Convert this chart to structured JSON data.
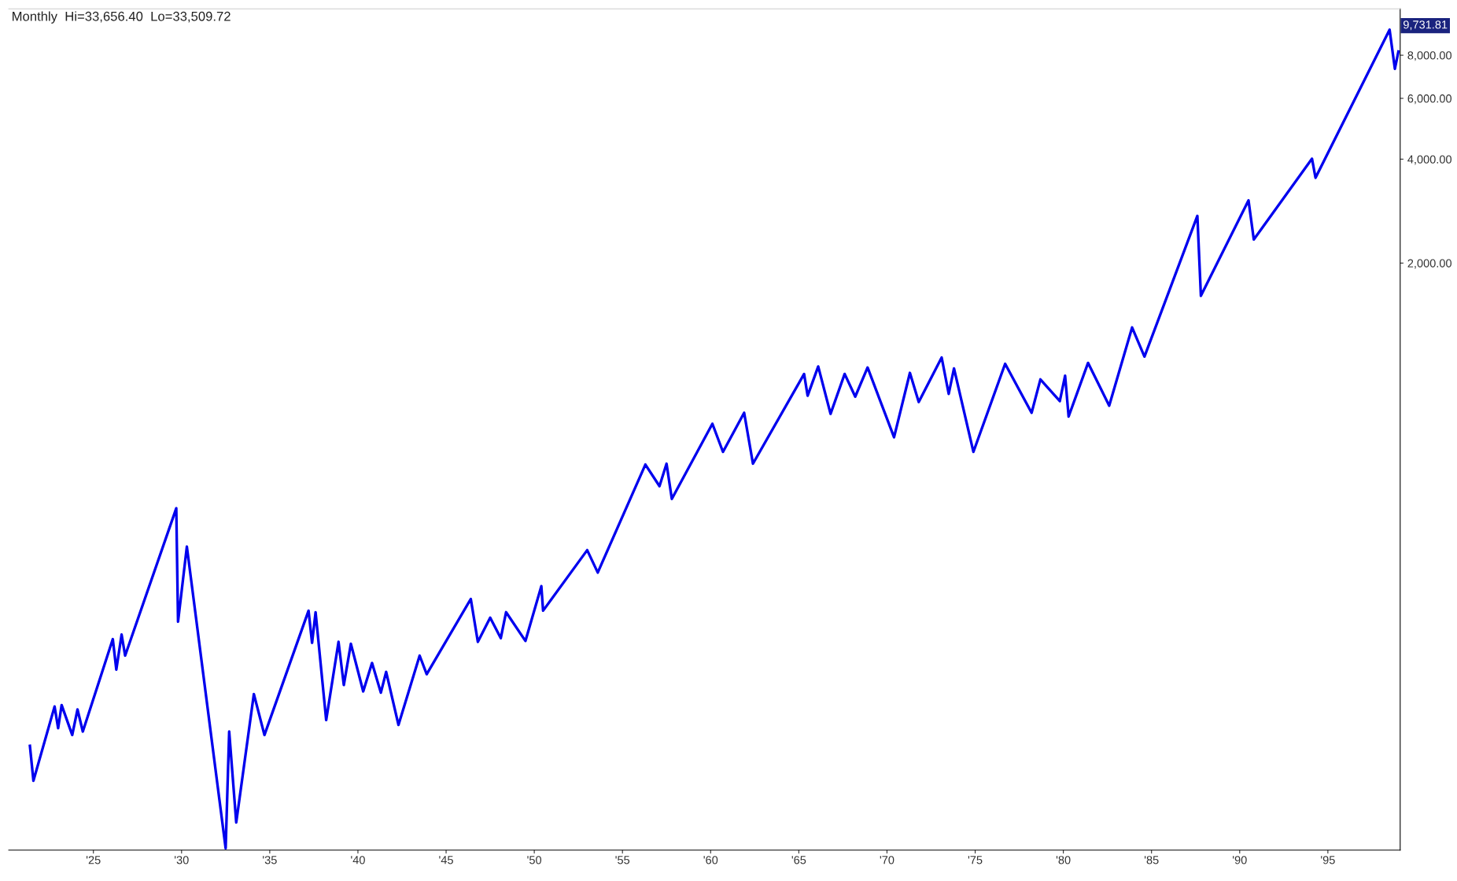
{
  "chart_data": {
    "type": "line",
    "title": "Monthly  Hi=33,656.40  Lo=33,509.72",
    "log": "y",
    "grid": false,
    "marker": "none",
    "line_style": "solid",
    "x": [
      1921.4,
      1921.6,
      1922.8,
      1923.0,
      1923.2,
      1923.8,
      1924.1,
      1924.4,
      1926.1,
      1926.3,
      1926.6,
      1926.8,
      1929.7,
      1929.8,
      1930.3,
      1932.5,
      1932.7,
      1933.1,
      1934.1,
      1934.7,
      1937.2,
      1937.4,
      1937.6,
      1938.2,
      1938.9,
      1939.2,
      1939.6,
      1940.3,
      1940.8,
      1941.3,
      1941.6,
      1942.3,
      1943.5,
      1943.9,
      1946.4,
      1946.8,
      1947.5,
      1948.1,
      1948.4,
      1949.5,
      1950.4,
      1950.5,
      1953.0,
      1953.6,
      1956.3,
      1957.1,
      1957.5,
      1957.8,
      1960.1,
      1960.7,
      1961.9,
      1962.4,
      1965.3,
      1965.5,
      1966.1,
      1966.8,
      1967.6,
      1968.2,
      1968.9,
      1970.4,
      1971.3,
      1971.8,
      1973.1,
      1973.5,
      1973.8,
      1974.9,
      1976.7,
      1978.2,
      1978.7,
      1979.8,
      1980.1,
      1980.3,
      1981.4,
      1982.6,
      1983.9,
      1984.6,
      1987.6,
      1987.8,
      1990.5,
      1990.8,
      1994.1,
      1994.3,
      1998.5,
      1998.8,
      1999.0
    ],
    "series": [
      {
        "color": "#0000ee",
        "values": [
          80,
          63.4,
          104,
          90,
          105,
          86,
          102,
          88,
          163,
          133,
          168,
          146,
          390,
          183,
          302,
          40.4,
          88,
          48,
          113,
          86,
          197,
          159,
          195,
          95,
          160,
          120,
          158,
          115,
          139,
          114,
          131,
          92,
          146,
          129,
          213,
          160,
          188,
          164,
          195,
          161,
          232,
          197,
          295,
          254,
          522,
          452,
          525,
          415,
          685,
          568,
          737,
          525,
          955,
          826,
          1004,
          732,
          955,
          821,
          997,
          626,
          962,
          792,
          1066,
          836,
          991,
          568,
          1022,
          737,
          921,
          797,
          944,
          719,
          1028,
          773,
          1302,
          1072,
          2740,
          1608,
          3038,
          2341,
          4011,
          3533,
          9480,
          7306,
          8196
        ]
      }
    ],
    "annotations": [
      "9,731.81"
    ],
    "xlim": [
      1920.2,
      1999.1
    ],
    "ylim": [
      39.9,
      10900
    ],
    "xticks": [
      {
        "value": 1925,
        "label": "'25"
      },
      {
        "value": 1930,
        "label": "'30"
      },
      {
        "value": 1935,
        "label": "'35"
      },
      {
        "value": 1940,
        "label": "'40"
      },
      {
        "value": 1945,
        "label": "'45"
      },
      {
        "value": 1950,
        "label": "'50"
      },
      {
        "value": 1955,
        "label": "'55"
      },
      {
        "value": 1960,
        "label": "'60"
      },
      {
        "value": 1965,
        "label": "'65"
      },
      {
        "value": 1970,
        "label": "'70"
      },
      {
        "value": 1975,
        "label": "'75"
      },
      {
        "value": 1980,
        "label": "'80"
      },
      {
        "value": 1985,
        "label": "'85"
      },
      {
        "value": 1990,
        "label": "'90"
      },
      {
        "value": 1995,
        "label": "'95"
      }
    ],
    "yticks": [
      {
        "value": 2000,
        "label": "2,000.00"
      },
      {
        "value": 4000,
        "label": "4,000.00"
      },
      {
        "value": 6000,
        "label": "6,000.00"
      },
      {
        "value": 8000,
        "label": "8,000.00"
      }
    ]
  }
}
